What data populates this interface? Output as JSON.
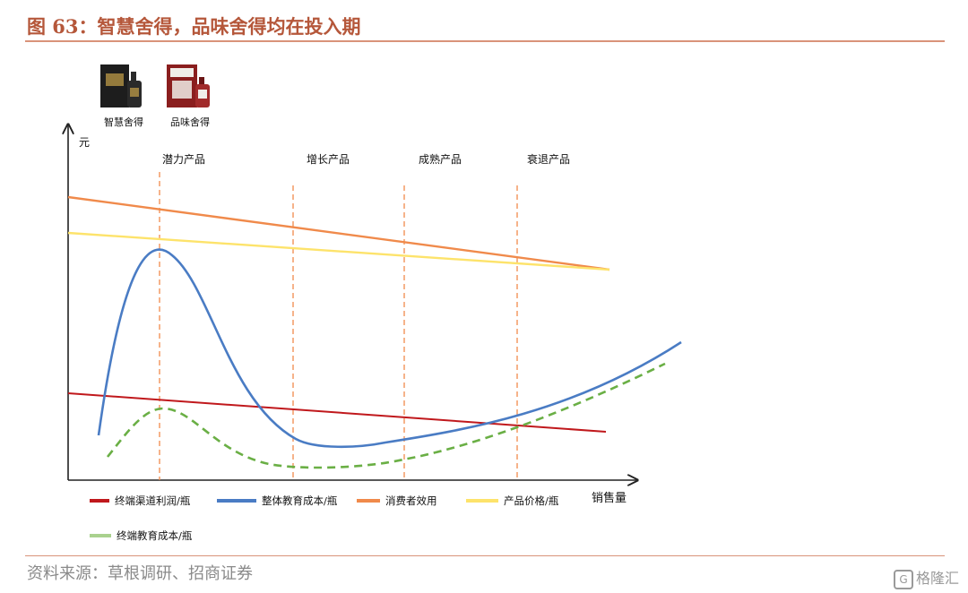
{
  "header": {
    "title": "图 63：智慧舍得，品味舍得均在投入期"
  },
  "products": [
    {
      "name": "智慧舍得",
      "box_color": "#1d1d1d",
      "accent": "#c8a24a"
    },
    {
      "name": "品味舍得",
      "box_color": "#8a1e1e",
      "accent": "#f0ede8"
    }
  ],
  "footer": {
    "source": "资料来源：草根调研、招商证券",
    "watermark": "格隆汇",
    "watermark_badge": "G"
  },
  "chart_data": {
    "type": "line",
    "title": "",
    "xlabel": "销售量",
    "ylabel": "元",
    "stages": [
      "潜力产品",
      "增长产品",
      "成熟产品",
      "衰退产品"
    ],
    "series": [
      {
        "name": "终端渠道利润/瓶",
        "color": "#c0181c",
        "style": "solid",
        "shape": "linear-decline"
      },
      {
        "name": "整体教育成本/瓶",
        "color": "#4a7cc4",
        "style": "solid",
        "shape": "peak-trough-rise"
      },
      {
        "name": "消费者效用",
        "color": "#f08a4b",
        "style": "solid",
        "shape": "linear-decline"
      },
      {
        "name": "产品价格/瓶",
        "color": "#fde36b",
        "style": "solid",
        "shape": "linear-decline"
      },
      {
        "name": "终端教育成本/瓶",
        "color": "#6aaf45",
        "style": "dashed",
        "legend_color": "#a9d18e",
        "shape": "peak-trough-rise"
      }
    ],
    "grid": false,
    "stage_divider_color": "#f08a4b",
    "legend_position": "bottom"
  }
}
